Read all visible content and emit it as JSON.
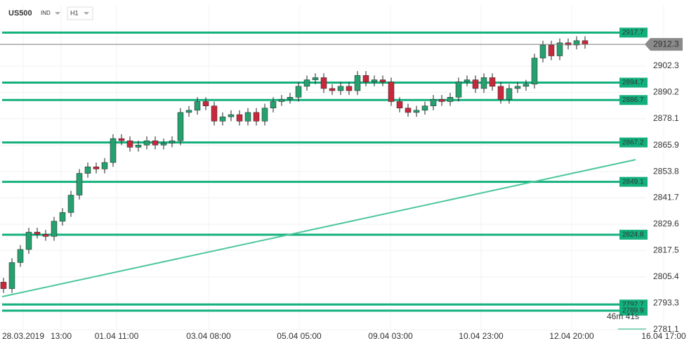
{
  "header": {
    "symbol": "US500",
    "market": "IND",
    "interval": "H1"
  },
  "countdown": "46m 41s",
  "chart_data": {
    "type": "candlestick",
    "open": [
      2803,
      2800,
      2812,
      2818,
      2826,
      2825,
      2824,
      2831,
      2835,
      2843,
      2853,
      2856,
      2855,
      2858,
      2869,
      2868,
      2865,
      2866,
      2868,
      2866,
      2867,
      2868,
      2881,
      2882,
      2886,
      2884,
      2877,
      2879,
      2880,
      2877,
      2881,
      2877,
      2883,
      2886,
      2887,
      2888,
      2893,
      2896,
      2897,
      2892,
      2891,
      2893,
      2891,
      2898,
      2895,
      2896,
      2895,
      2886,
      2883,
      2881,
      2882,
      2884,
      2887,
      2886,
      2888,
      2895,
      2896,
      2892,
      2897,
      2893,
      2887,
      2892,
      2893,
      2894,
      2906,
      2912,
      2907,
      2913,
      2912,
      2914
    ],
    "high": [
      2805,
      2814,
      2820,
      2828,
      2828,
      2827,
      2833,
      2837,
      2845,
      2855,
      2858,
      2858,
      2860,
      2871,
      2871,
      2870,
      2868,
      2870,
      2870,
      2869,
      2870,
      2883,
      2884,
      2888,
      2888,
      2886,
      2881,
      2882,
      2882,
      2883,
      2883,
      2885,
      2888,
      2889,
      2890,
      2895,
      2898,
      2899,
      2899,
      2894,
      2895,
      2895,
      2900,
      2900,
      2898,
      2898,
      2897,
      2888,
      2885,
      2884,
      2886,
      2889,
      2889,
      2890,
      2897,
      2898,
      2898,
      2899,
      2899,
      2895,
      2894,
      2895,
      2896,
      2908,
      2914,
      2914,
      2915,
      2915,
      2916,
      2916
    ],
    "low": [
      2798,
      2798,
      2810,
      2816,
      2823,
      2822,
      2822,
      2829,
      2833,
      2841,
      2851,
      2853,
      2853,
      2856,
      2866,
      2863,
      2863,
      2864,
      2864,
      2864,
      2865,
      2866,
      2879,
      2880,
      2882,
      2875,
      2875,
      2877,
      2875,
      2875,
      2875,
      2875,
      2881,
      2884,
      2885,
      2886,
      2891,
      2894,
      2890,
      2889,
      2889,
      2889,
      2889,
      2893,
      2893,
      2893,
      2884,
      2881,
      2879,
      2879,
      2880,
      2882,
      2884,
      2884,
      2886,
      2893,
      2890,
      2890,
      2891,
      2885,
      2885,
      2890,
      2891,
      2892,
      2904,
      2905,
      2905,
      2910,
      2910,
      2910.3
    ],
    "close": [
      2800,
      2812,
      2818,
      2826,
      2825,
      2824,
      2831,
      2835,
      2843,
      2853,
      2856,
      2855,
      2858,
      2869,
      2868,
      2865,
      2866,
      2868,
      2866,
      2867,
      2868,
      2881,
      2882,
      2886,
      2884,
      2877,
      2879,
      2880,
      2877,
      2881,
      2877,
      2883,
      2886,
      2887,
      2888,
      2893,
      2896,
      2897,
      2892,
      2891,
      2893,
      2891,
      2898,
      2895,
      2896,
      2895,
      2886,
      2883,
      2881,
      2882,
      2884,
      2887,
      2886,
      2888,
      2895,
      2896,
      2892,
      2897,
      2893,
      2887,
      2892,
      2893,
      2894,
      2906,
      2912,
      2907,
      2913,
      2912,
      2914,
      2912.3
    ],
    "up_color": "#26a06e",
    "down_color": "#c8283c",
    "levels": [
      2917.7,
      2894.7,
      2886.7,
      2867.2,
      2849.1,
      2824.8,
      2792.7,
      2789.9
    ],
    "level_color": "#13b07d",
    "last_price": 2912.3,
    "trendline": [
      2796.3,
      2859.3
    ],
    "x_labels": [
      "28.03.2019",
      "13:00",
      "01.04  11:00",
      "03.04  08:00",
      "05.04  05:00",
      "09.04  03:00",
      "10.04  23:00",
      "12.04  20:00",
      "16.04  17:00"
    ],
    "ylim": [
      2780.8,
      2930.1
    ],
    "yticks": [
      2781.1,
      2793.3,
      2805.4,
      2817.5,
      2829.6,
      2841.7,
      2853.8,
      2865.9,
      2878.1,
      2890.2,
      2902.3
    ]
  }
}
